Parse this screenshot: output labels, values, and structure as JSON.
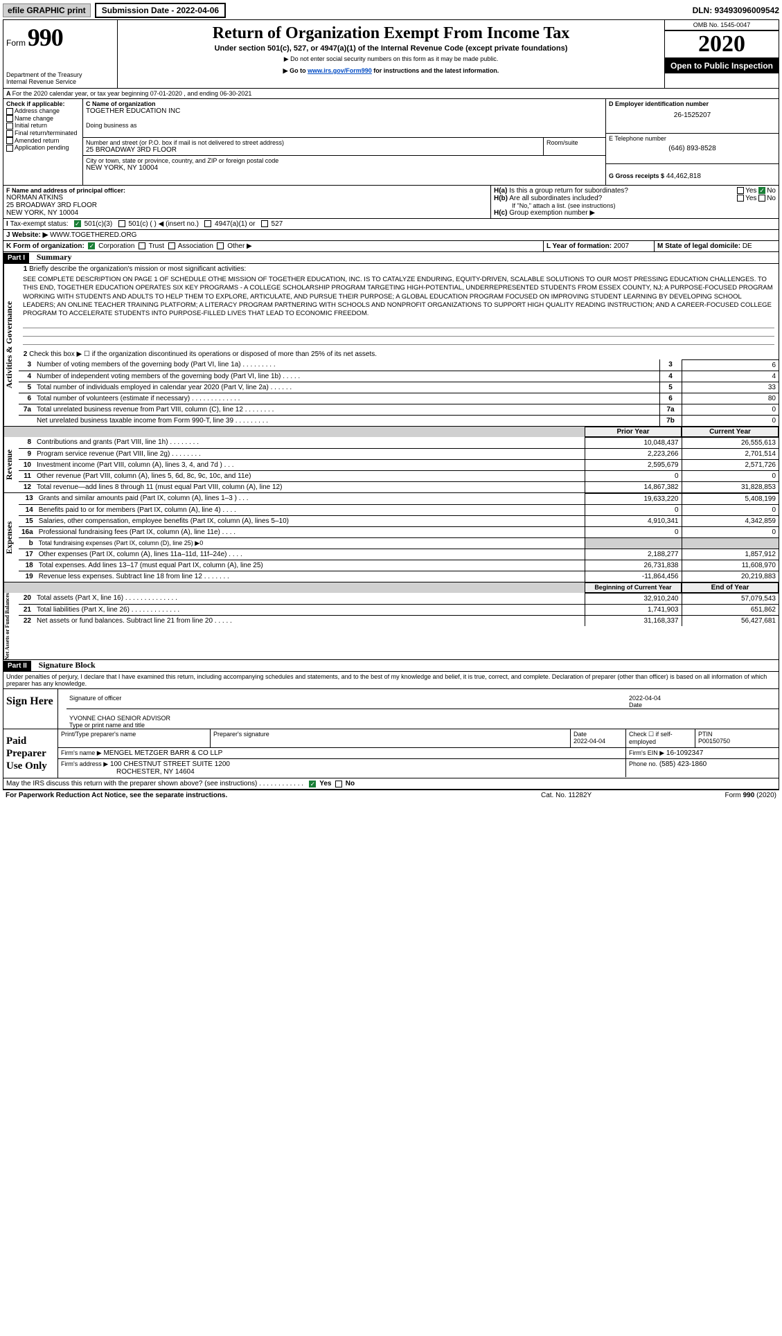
{
  "topbar": {
    "graphic_label": "efile GRAPHIC print",
    "submission_label": "Submission Date - 2022-04-06",
    "dln": "DLN: 93493096009542"
  },
  "header": {
    "form_word": "Form",
    "form_num": "990",
    "dept": "Department of the Treasury",
    "irs": "Internal Revenue Service",
    "title": "Return of Organization Exempt From Income Tax",
    "sub1": "Under section 501(c), 527, or 4947(a)(1) of the Internal Revenue Code (except private foundations)",
    "sub2": "▶ Do not enter social security numbers on this form as it may be made public.",
    "sub3_pre": "▶ Go to ",
    "sub3_link": "www.irs.gov/Form990",
    "sub3_post": " for instructions and the latest information.",
    "omb": "OMB No. 1545-0047",
    "year": "2020",
    "open": "Open to Public Inspection"
  },
  "lineA": "For the 2020 calendar year, or tax year beginning 07-01-2020    , and ending 06-30-2021",
  "B": {
    "label": "Check if applicable:",
    "opts": [
      "Address change",
      "Name change",
      "Initial return",
      "Final return/terminated",
      "Amended return",
      "Application pending"
    ]
  },
  "C": {
    "name_label": "C Name of organization",
    "name": "TOGETHER EDUCATION INC",
    "dba_label": "Doing business as",
    "addr_label": "Number and street (or P.O. box if mail is not delivered to street address)",
    "addr": "25 BROADWAY 3RD FLOOR",
    "room_label": "Room/suite",
    "city_label": "City or town, state or province, country, and ZIP or foreign postal code",
    "city": "NEW YORK, NY  10004"
  },
  "D": {
    "label": "D Employer identification number",
    "val": "26-1525207"
  },
  "E": {
    "label": "E Telephone number",
    "val": "(646) 893-8528"
  },
  "G": {
    "label": "G Gross receipts $",
    "val": "44,462,818"
  },
  "F": {
    "label": "F  Name and address of principal officer:",
    "name": "NORMAN ATKINS",
    "addr1": "25 BROADWAY 3RD FLOOR",
    "addr2": "NEW YORK, NY  10004"
  },
  "H": {
    "a": "Is this a group return for subordinates?",
    "b": "Are all subordinates included?",
    "note": "If \"No,\" attach a list. (see instructions)",
    "c": "Group exemption number ▶",
    "yes": "Yes",
    "no": "No"
  },
  "I": {
    "label": "Tax-exempt status:",
    "o1": "501(c)(3)",
    "o2": "501(c) (  ) ◀ (insert no.)",
    "o3": "4947(a)(1) or",
    "o4": "527"
  },
  "J": {
    "label": "Website: ▶",
    "val": "WWW.TOGETHERED.ORG"
  },
  "K": {
    "label": "K Form of organization:",
    "o1": "Corporation",
    "o2": "Trust",
    "o3": "Association",
    "o4": "Other ▶"
  },
  "L": {
    "label": "L Year of formation:",
    "val": "2007"
  },
  "M": {
    "label": "M State of legal domicile:",
    "val": "DE"
  },
  "part1": {
    "header": "Part I",
    "title": "Summary",
    "q1": "Briefly describe the organization's mission or most significant activities:",
    "mission": "SEE COMPLETE DESCRIPTION ON PAGE 1 OF SCHEDULE OTHE MISSION OF TOGETHER EDUCATION, INC. IS TO CATALYZE ENDURING, EQUITY-DRIVEN, SCALABLE SOLUTIONS TO OUR MOST PRESSING EDUCATION CHALLENGES. TO THIS END, TOGETHER EDUCATION OPERATES SIX KEY PROGRAMS - A COLLEGE SCHOLARSHIP PROGRAM TARGETING HIGH-POTENTIAL, UNDERREPRESENTED STUDENTS FROM ESSEX COUNTY, NJ; A PURPOSE-FOCUSED PROGRAM WORKING WITH STUDENTS AND ADULTS TO HELP THEM TO EXPLORE, ARTICULATE, AND PURSUE THEIR PURPOSE; A GLOBAL EDUCATION PROGRAM FOCUSED ON IMPROVING STUDENT LEARNING BY DEVELOPING SCHOOL LEADERS; AN ONLINE TEACHER TRAINING PLATFORM; A LITERACY PROGRAM PARTNERING WITH SCHOOLS AND NONPROFIT ORGANIZATIONS TO SUPPORT HIGH QUALITY READING INSTRUCTION; AND A CAREER-FOCUSED COLLEGE PROGRAM TO ACCELERATE STUDENTS INTO PURPOSE-FILLED LIVES THAT LEAD TO ECONOMIC FREEDOM.",
    "q2": "Check this box ▶ ☐ if the organization discontinued its operations or disposed of more than 25% of its net assets.",
    "lines": {
      "3": {
        "t": "Number of voting members of the governing body (Part VI, line 1a)    .    .    .    .    .    .    .    .    .",
        "v": "6"
      },
      "4": {
        "t": "Number of independent voting members of the governing body (Part VI, line 1b)    .    .    .    .    .",
        "v": "4"
      },
      "5": {
        "t": "Total number of individuals employed in calendar year 2020 (Part V, line 2a)    .    .    .    .    .    .",
        "v": "33"
      },
      "6": {
        "t": "Total number of volunteers (estimate if necessary)    .    .    .    .    .    .    .    .    .    .    .    .    .",
        "v": "80"
      },
      "7a": {
        "t": "Total unrelated business revenue from Part VIII, column (C), line 12    .    .    .    .    .    .    .    .",
        "v": "0"
      },
      "7b": {
        "t": "Net unrelated business taxable income from Form 990-T, line 39    .    .    .    .    .    .    .    .    .",
        "v": "0"
      }
    },
    "hdr_prior": "Prior Year",
    "hdr_current": "Current Year",
    "revenue": [
      {
        "n": "8",
        "t": "Contributions and grants (Part VIII, line 1h)    .    .    .    .    .    .    .    .",
        "p": "10,048,437",
        "c": "26,555,613"
      },
      {
        "n": "9",
        "t": "Program service revenue (Part VIII, line 2g)    .    .    .    .    .    .    .    .",
        "p": "2,223,266",
        "c": "2,701,514"
      },
      {
        "n": "10",
        "t": "Investment income (Part VIII, column (A), lines 3, 4, and 7d )    .    .    .",
        "p": "2,595,679",
        "c": "2,571,726"
      },
      {
        "n": "11",
        "t": "Other revenue (Part VIII, column (A), lines 5, 6d, 8c, 9c, 10c, and 11e)",
        "p": "0",
        "c": "0"
      },
      {
        "n": "12",
        "t": "Total revenue—add lines 8 through 11 (must equal Part VIII, column (A), line 12)",
        "p": "14,867,382",
        "c": "31,828,853"
      }
    ],
    "expenses": [
      {
        "n": "13",
        "t": "Grants and similar amounts paid (Part IX, column (A), lines 1–3 )    .    .    .",
        "p": "19,633,220",
        "c": "5,408,199"
      },
      {
        "n": "14",
        "t": "Benefits paid to or for members (Part IX, column (A), line 4)    .    .    .    .",
        "p": "0",
        "c": "0"
      },
      {
        "n": "15",
        "t": "Salaries, other compensation, employee benefits (Part IX, column (A), lines 5–10)",
        "p": "4,910,341",
        "c": "4,342,859"
      },
      {
        "n": "16a",
        "t": "Professional fundraising fees (Part IX, column (A), line 11e)    .    .    .    .",
        "p": "0",
        "c": "0"
      },
      {
        "n": "b",
        "t": "Total fundraising expenses (Part IX, column (D), line 25) ▶0",
        "p": "",
        "c": ""
      },
      {
        "n": "17",
        "t": "Other expenses (Part IX, column (A), lines 11a–11d, 11f–24e)    .    .    .    .",
        "p": "2,188,277",
        "c": "1,857,912"
      },
      {
        "n": "18",
        "t": "Total expenses. Add lines 13–17 (must equal Part IX, column (A), line 25)",
        "p": "26,731,838",
        "c": "11,608,970"
      },
      {
        "n": "19",
        "t": "Revenue less expenses. Subtract line 18 from line 12    .    .    .    .    .    .    .",
        "p": "-11,864,456",
        "c": "20,219,883"
      }
    ],
    "hdr_begin": "Beginning of Current Year",
    "hdr_end": "End of Year",
    "nets": [
      {
        "n": "20",
        "t": "Total assets (Part X, line 16)    .    .    .    .    .    .    .    .    .    .    .    .    .    .",
        "p": "32,910,240",
        "c": "57,079,543"
      },
      {
        "n": "21",
        "t": "Total liabilities (Part X, line 26)    .    .    .    .    .    .    .    .    .    .    .    .    .",
        "p": "1,741,903",
        "c": "651,862"
      },
      {
        "n": "22",
        "t": "Net assets or fund balances. Subtract line 21 from line 20    .    .    .    .    .",
        "p": "31,168,337",
        "c": "56,427,681"
      }
    ]
  },
  "sidebars": {
    "activities": "Activities & Governance",
    "revenue": "Revenue",
    "expenses": "Expenses",
    "nets": "Net Assets or Fund Balances"
  },
  "part2": {
    "header": "Part II",
    "title": "Signature Block",
    "penalties": "Under penalties of perjury, I declare that I have examined this return, including accompanying schedules and statements, and to the best of my knowledge and belief, it is true, correct, and complete. Declaration of preparer (other than officer) is based on all information of which preparer has any knowledge."
  },
  "sign": {
    "label": "Sign Here",
    "sig_label": "Signature of officer",
    "date_label": "Date",
    "date_val": "2022-04-04",
    "name": "YVONNE CHAO  SENIOR ADVISOR",
    "type_label": "Type or print name and title"
  },
  "paid": {
    "label": "Paid Preparer Use Only",
    "h1": "Print/Type preparer's name",
    "h2": "Preparer's signature",
    "h3": "Date",
    "h3v": "2022-04-04",
    "h4": "Check ☐ if self-employed",
    "h5": "PTIN",
    "h5v": "P00150750",
    "firm_label": "Firm's name    ▶",
    "firm": "MENGEL METZGER BARR & CO LLP",
    "ein_label": "Firm's EIN ▶",
    "ein": "16-1092347",
    "addr_label": "Firm's address ▶",
    "addr1": "100 CHESTNUT STREET SUITE 1200",
    "addr2": "ROCHESTER, NY  14604",
    "phone_label": "Phone no.",
    "phone": "(585) 423-1860"
  },
  "footer": {
    "discuss": "May the IRS discuss this return with the preparer shown above? (see instructions)    .    .    .    .    .    .    .    .    .    .    .    .",
    "yes": "Yes",
    "no": "No",
    "paperwork": "For Paperwork Reduction Act Notice, see the separate instructions.",
    "cat": "Cat. No. 11282Y",
    "formref": "Form 990 (2020)"
  },
  "colors": {
    "link": "#004bc4",
    "black": "#000000",
    "check": "#1a7f37",
    "shade": "#d0d0d0"
  }
}
